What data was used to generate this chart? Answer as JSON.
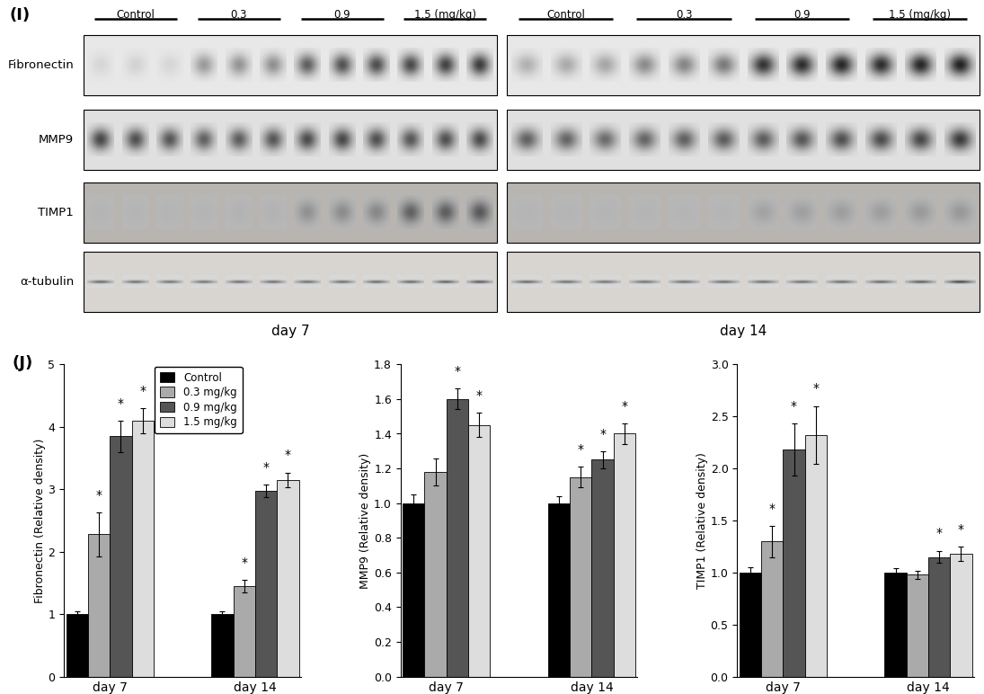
{
  "panel_label_I": "(I)",
  "panel_label_J": "(J)",
  "blot_labels": [
    "Fibronectin",
    "MMP9",
    "TIMP1",
    "α-tubulin"
  ],
  "dose_labels_left": [
    "Control",
    "0.3",
    "0.9",
    "1.5 (mg/kg)"
  ],
  "dose_labels_right": [
    "Control",
    "0.3",
    "0.9",
    "1.5 (mg/kg)"
  ],
  "fibronectin": {
    "ylabel": "Fibronectin (Relative density)",
    "ylim": [
      0,
      5
    ],
    "yticks": [
      0,
      1,
      2,
      3,
      4,
      5
    ],
    "day7": [
      1.0,
      2.28,
      3.85,
      4.1
    ],
    "day7_err": [
      0.04,
      0.35,
      0.25,
      0.2
    ],
    "day7_sig": [
      false,
      true,
      true,
      true
    ],
    "day14": [
      1.0,
      1.45,
      2.98,
      3.15
    ],
    "day14_err": [
      0.04,
      0.1,
      0.1,
      0.12
    ],
    "day14_sig": [
      false,
      true,
      true,
      true
    ]
  },
  "mmp9": {
    "ylabel": "MMP9 (Relative density)",
    "ylim": [
      0.0,
      1.8
    ],
    "yticks": [
      0.0,
      0.2,
      0.4,
      0.6,
      0.8,
      1.0,
      1.2,
      1.4,
      1.6,
      1.8
    ],
    "day7": [
      1.0,
      1.18,
      1.6,
      1.45
    ],
    "day7_err": [
      0.05,
      0.08,
      0.06,
      0.07
    ],
    "day7_sig": [
      false,
      false,
      true,
      true
    ],
    "day14": [
      1.0,
      1.15,
      1.25,
      1.4
    ],
    "day14_err": [
      0.04,
      0.06,
      0.05,
      0.06
    ],
    "day14_sig": [
      false,
      true,
      true,
      true
    ]
  },
  "timp1": {
    "ylabel": "TIMP1 (Relative density)",
    "ylim": [
      0.0,
      3.0
    ],
    "yticks": [
      0.0,
      0.5,
      1.0,
      1.5,
      2.0,
      2.5,
      3.0
    ],
    "day7": [
      1.0,
      1.3,
      2.18,
      2.32
    ],
    "day7_err": [
      0.05,
      0.15,
      0.25,
      0.28
    ],
    "day7_sig": [
      false,
      true,
      true,
      true
    ],
    "day14": [
      1.0,
      0.98,
      1.15,
      1.18
    ],
    "day14_err": [
      0.04,
      0.04,
      0.06,
      0.07
    ],
    "day14_sig": [
      false,
      false,
      true,
      true
    ]
  },
  "bar_colors": [
    "#000000",
    "#aaaaaa",
    "#555555",
    "#dddddd"
  ],
  "legend_labels": [
    "Control",
    "0.3 mg/kg",
    "0.9 mg/kg",
    "1.5 mg/kg"
  ],
  "blot_bg_colors": [
    "#e8e8e8",
    "#e0e0e0",
    "#b8b4b0",
    "#d8d4d0"
  ],
  "fibronectin_left_intensities": [
    0.08,
    0.1,
    0.08,
    0.35,
    0.38,
    0.4,
    0.62,
    0.68,
    0.7,
    0.72,
    0.75,
    0.78
  ],
  "fibronectin_right_intensities": [
    0.25,
    0.28,
    0.3,
    0.42,
    0.45,
    0.5,
    0.82,
    0.85,
    0.88,
    0.85,
    0.88,
    0.9
  ],
  "mmp9_left_intensities": [
    0.72,
    0.68,
    0.65,
    0.6,
    0.62,
    0.65,
    0.7,
    0.72,
    0.68,
    0.65,
    0.68,
    0.7
  ],
  "mmp9_right_intensities": [
    0.6,
    0.58,
    0.55,
    0.58,
    0.6,
    0.62,
    0.62,
    0.65,
    0.68,
    0.7,
    0.72,
    0.78
  ],
  "timp1_left_intensities": [
    0.02,
    0.02,
    0.02,
    0.02,
    0.03,
    0.03,
    0.22,
    0.25,
    0.28,
    0.5,
    0.52,
    0.55
  ],
  "timp1_right_intensities": [
    0.02,
    0.02,
    0.02,
    0.02,
    0.02,
    0.02,
    0.12,
    0.14,
    0.15,
    0.15,
    0.17,
    0.18
  ],
  "tubulin_left_intensities": [
    0.55,
    0.52,
    0.5,
    0.5,
    0.52,
    0.52,
    0.52,
    0.52,
    0.54,
    0.55,
    0.58,
    0.62
  ],
  "tubulin_right_intensities": [
    0.55,
    0.52,
    0.5,
    0.5,
    0.52,
    0.52,
    0.52,
    0.52,
    0.54,
    0.55,
    0.6,
    0.72
  ]
}
